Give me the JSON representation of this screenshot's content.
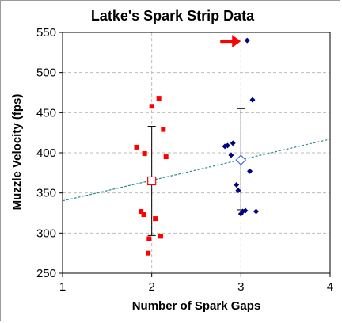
{
  "chart_data": {
    "type": "scatter",
    "title": "Latke's Spark Strip Data",
    "xlabel": "Number of Spark Gaps",
    "ylabel": "Muzzle Velocity (fps)",
    "xlim": [
      1,
      4
    ],
    "ylim": [
      250,
      550
    ],
    "x_ticks": [
      1,
      2,
      3,
      4
    ],
    "y_ticks": [
      250,
      300,
      350,
      400,
      450,
      500,
      550
    ],
    "grid": true,
    "series": [
      {
        "color": "#ff0000",
        "marker": "square",
        "points": [
          {
            "x": 1.83,
            "y": 407
          },
          {
            "x": 1.88,
            "y": 327
          },
          {
            "x": 1.91,
            "y": 323
          },
          {
            "x": 1.92,
            "y": 399
          },
          {
            "x": 1.96,
            "y": 275
          },
          {
            "x": 1.97,
            "y": 293
          },
          {
            "x": 2.0,
            "y": 458
          },
          {
            "x": 2.04,
            "y": 318
          },
          {
            "x": 2.08,
            "y": 468
          },
          {
            "x": 2.1,
            "y": 296
          },
          {
            "x": 2.13,
            "y": 429
          },
          {
            "x": 2.16,
            "y": 395
          }
        ],
        "mean": {
          "x": 2,
          "y": 365
        },
        "error_bar": {
          "low": 297,
          "high": 433
        }
      },
      {
        "color": "#000080",
        "marker": "diamond",
        "points": [
          {
            "x": 2.82,
            "y": 408
          },
          {
            "x": 2.85,
            "y": 409
          },
          {
            "x": 2.89,
            "y": 397
          },
          {
            "x": 2.91,
            "y": 412
          },
          {
            "x": 2.95,
            "y": 360
          },
          {
            "x": 2.97,
            "y": 353
          },
          {
            "x": 3.0,
            "y": 324
          },
          {
            "x": 3.02,
            "y": 327
          },
          {
            "x": 3.05,
            "y": 328
          },
          {
            "x": 3.07,
            "y": 540
          },
          {
            "x": 3.1,
            "y": 377
          },
          {
            "x": 3.13,
            "y": 466
          },
          {
            "x": 3.17,
            "y": 327
          }
        ],
        "mean": {
          "x": 3,
          "y": 391
        },
        "error_bar": {
          "low": 329,
          "high": 455
        }
      }
    ],
    "trendline": {
      "color": "#2e8b8b",
      "style": "dashed",
      "x": [
        1,
        4
      ],
      "y": [
        340,
        417
      ]
    },
    "annotation": {
      "type": "arrow",
      "color": "#ff0000",
      "points_to": {
        "x": 3.07,
        "y": 540
      }
    }
  }
}
